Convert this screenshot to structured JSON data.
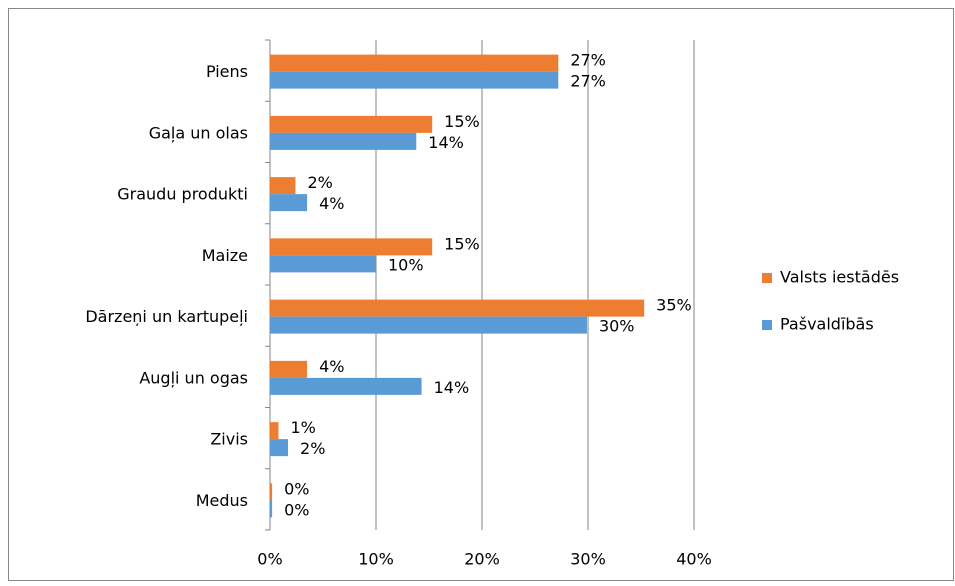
{
  "chart_data": {
    "type": "bar",
    "orientation": "horizontal",
    "categories": [
      "Piens",
      "Gaļa un olas",
      "Graudu produkti",
      "Maize",
      "Dārzeņi un kartupeļi",
      "Augļi un ogas",
      "Zivis",
      "Medus"
    ],
    "series": [
      {
        "name": "Valsts iestādēs",
        "color": "#ed7d31",
        "values": [
          27.2,
          15.3,
          2.4,
          15.3,
          35.3,
          3.5,
          0.8,
          0.2
        ],
        "value_labels": [
          "27%",
          "15%",
          "2%",
          "15%",
          "35%",
          "4%",
          "1%",
          "0%"
        ]
      },
      {
        "name": "Pašvaldībās",
        "color": "#5b9bd5",
        "values": [
          27.2,
          13.8,
          3.5,
          10.0,
          29.9,
          14.3,
          1.7,
          0.2
        ],
        "value_labels": [
          "27%",
          "14%",
          "4%",
          "10%",
          "30%",
          "14%",
          "2%",
          "0%"
        ]
      }
    ],
    "xlim": [
      0,
      40
    ],
    "xticks": [
      {
        "value": 0,
        "label": "0%"
      },
      {
        "value": 10,
        "label": "10%"
      },
      {
        "value": 20,
        "label": "20%"
      },
      {
        "value": 30,
        "label": "30%"
      },
      {
        "value": 40,
        "label": "40%"
      }
    ],
    "grid": true,
    "legend": "right"
  }
}
